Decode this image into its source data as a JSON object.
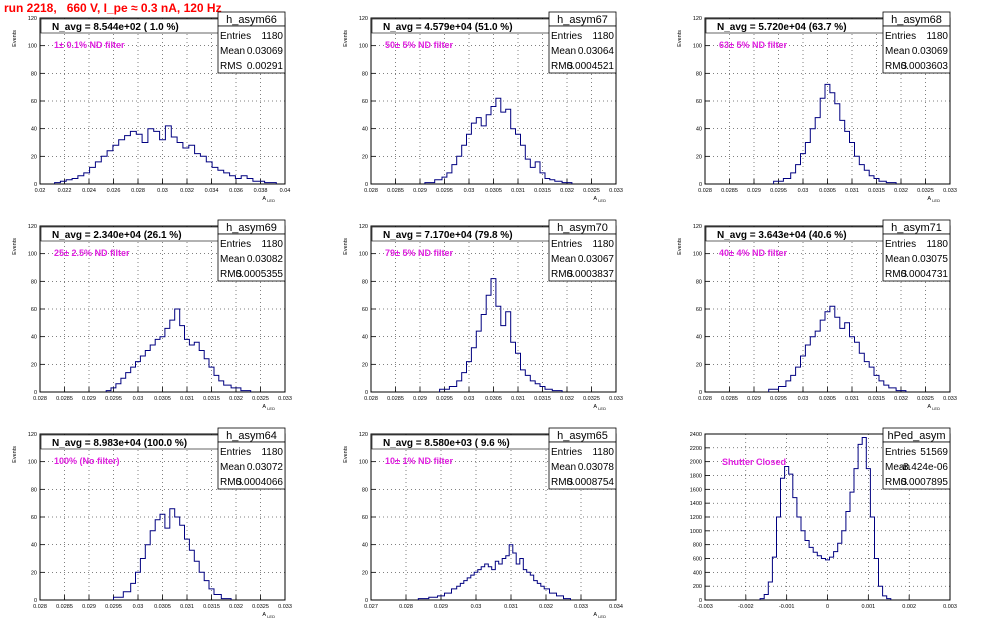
{
  "page": {
    "title": "run 2218,   660 V, I_pe ≈ 0.3 nA, 120 Hz"
  },
  "colors": {
    "histogram": "#000080",
    "annotation": "#e020e0",
    "title_text": "#ff0000",
    "axes": "#000000",
    "grid": "#000000"
  },
  "chart_data": [
    {
      "type": "histogram",
      "name": "h_asym66",
      "stats": {
        "entries_label": "Entries",
        "entries": "1180",
        "mean_label": "Mean",
        "mean": "0.03069",
        "rms_label": "RMS",
        "rms": "0.00291"
      },
      "annotation": "N_avg = 8.544e+02 ( 1.0 %)",
      "filter_label": "1± 0.1% ND filter",
      "xlabel": "A_LED",
      "ylabel": "Events",
      "xlim": [
        0.02,
        0.041
      ],
      "ylim": [
        0,
        120
      ],
      "xticks": [
        "0.02",
        "0.022",
        "0.024",
        "0.026",
        "0.028",
        "0.03",
        "0.032",
        "0.034",
        "0.036",
        "0.038",
        "0.04"
      ],
      "yticks": [
        "0",
        "20",
        "40",
        "60",
        "80",
        "100",
        "120"
      ],
      "x": [
        0.0215,
        0.022,
        0.0225,
        0.023,
        0.0235,
        0.024,
        0.0245,
        0.025,
        0.0255,
        0.026,
        0.0265,
        0.027,
        0.0275,
        0.028,
        0.0285,
        0.029,
        0.0295,
        0.03,
        0.0305,
        0.031,
        0.0315,
        0.032,
        0.0325,
        0.033,
        0.0335,
        0.034,
        0.0345,
        0.035,
        0.0355,
        0.036,
        0.0365,
        0.037,
        0.0375,
        0.038,
        0.0385,
        0.039,
        0.0395,
        0.04
      ],
      "values": [
        1,
        2,
        3,
        4,
        6,
        8,
        12,
        16,
        20,
        24,
        28,
        32,
        35,
        38,
        36,
        30,
        40,
        38,
        32,
        42,
        34,
        30,
        26,
        28,
        22,
        20,
        16,
        12,
        10,
        8,
        6,
        4,
        6,
        4,
        2,
        2,
        1,
        1
      ]
    },
    {
      "type": "histogram",
      "name": "h_asym67",
      "stats": {
        "entries_label": "Entries",
        "entries": "1180",
        "mean_label": "Mean",
        "mean": "0.03064",
        "rms_label": "RMS",
        "rms": "0.0004521"
      },
      "annotation": "N_avg = 4.579e+04 (51.0 %)",
      "filter_label": "50± 5% ND filter",
      "xlabel": "A_LED",
      "ylabel": "Events",
      "xlim": [
        0.028,
        0.033
      ],
      "ylim": [
        0,
        120
      ],
      "xticks": [
        "0.028",
        "0.0285",
        "0.029",
        "0.0295",
        "0.03",
        "0.0305",
        "0.031",
        "0.0315",
        "0.032",
        "0.0325",
        "0.033"
      ],
      "yticks": [
        "0",
        "20",
        "40",
        "60",
        "80",
        "100",
        "120"
      ],
      "x": [
        0.0292,
        0.0294,
        0.0295,
        0.0296,
        0.0297,
        0.0298,
        0.0299,
        0.03,
        0.0301,
        0.0302,
        0.0303,
        0.0304,
        0.0305,
        0.0306,
        0.0307,
        0.0308,
        0.0309,
        0.031,
        0.0311,
        0.0312,
        0.0313,
        0.0314,
        0.0315,
        0.0316,
        0.0317,
        0.0318,
        0.032
      ],
      "values": [
        1,
        3,
        5,
        8,
        14,
        20,
        28,
        36,
        44,
        48,
        42,
        50,
        56,
        62,
        52,
        54,
        40,
        36,
        28,
        18,
        12,
        16,
        8,
        4,
        3,
        2,
        1
      ]
    },
    {
      "type": "histogram",
      "name": "h_asym68",
      "stats": {
        "entries_label": "Entries",
        "entries": "1180",
        "mean_label": "Mean",
        "mean": "0.03069",
        "rms_label": "RMS",
        "rms": "0.0003603"
      },
      "annotation": "N_avg = 5.720e+04 (63.7 %)",
      "filter_label": "63± 5% ND filter",
      "xlabel": "A_LED",
      "ylabel": "Events",
      "xlim": [
        0.028,
        0.033
      ],
      "ylim": [
        0,
        120
      ],
      "xticks": [
        "0.028",
        "0.0285",
        "0.029",
        "0.0295",
        "0.03",
        "0.0305",
        "0.031",
        "0.0315",
        "0.032",
        "0.0325",
        "0.033"
      ],
      "yticks": [
        "0",
        "20",
        "40",
        "60",
        "80",
        "100",
        "120"
      ],
      "x": [
        0.0295,
        0.0297,
        0.0298,
        0.0299,
        0.03,
        0.0301,
        0.0302,
        0.0303,
        0.0304,
        0.0305,
        0.0306,
        0.0307,
        0.0308,
        0.0309,
        0.031,
        0.0311,
        0.0312,
        0.0313,
        0.0314,
        0.0315,
        0.0316,
        0.0318
      ],
      "values": [
        2,
        4,
        8,
        14,
        22,
        30,
        40,
        48,
        62,
        72,
        66,
        58,
        46,
        38,
        30,
        20,
        14,
        10,
        6,
        4,
        2,
        1
      ]
    },
    {
      "type": "histogram",
      "name": "h_asym69",
      "stats": {
        "entries_label": "Entries",
        "entries": "1180",
        "mean_label": "Mean",
        "mean": "0.03082",
        "rms_label": "RMS",
        "rms": "0.0005355"
      },
      "annotation": "N_avg = 2.340e+04 (26.1 %)",
      "filter_label": "25± 2.5% ND filter",
      "xlabel": "A_LED",
      "ylabel": "Events",
      "xlim": [
        0.028,
        0.033
      ],
      "ylim": [
        0,
        120
      ],
      "xticks": [
        "0.028",
        "0.0285",
        "0.029",
        "0.0295",
        "0.03",
        "0.0305",
        "0.031",
        "0.0315",
        "0.032",
        "0.0325",
        "0.033"
      ],
      "yticks": [
        "0",
        "20",
        "40",
        "60",
        "80",
        "100",
        "120"
      ],
      "x": [
        0.0294,
        0.0295,
        0.0296,
        0.0297,
        0.0298,
        0.0299,
        0.03,
        0.0301,
        0.0302,
        0.0303,
        0.0304,
        0.0305,
        0.0306,
        0.0307,
        0.0308,
        0.0309,
        0.031,
        0.0311,
        0.0312,
        0.0313,
        0.0314,
        0.0315,
        0.0316,
        0.0317,
        0.0318,
        0.032,
        0.0322
      ],
      "values": [
        1,
        3,
        6,
        10,
        14,
        18,
        22,
        26,
        30,
        34,
        38,
        40,
        46,
        52,
        60,
        48,
        38,
        34,
        36,
        30,
        24,
        18,
        12,
        8,
        5,
        3,
        1
      ]
    },
    {
      "type": "histogram",
      "name": "h_asym70",
      "stats": {
        "entries_label": "Entries",
        "entries": "1180",
        "mean_label": "Mean",
        "mean": "0.03067",
        "rms_label": "RMS",
        "rms": "0.0003837"
      },
      "annotation": "N_avg = 7.170e+04 (79.8 %)",
      "filter_label": "79± 5% ND filter",
      "xlabel": "A_LED",
      "ylabel": "Events",
      "xlim": [
        0.028,
        0.033
      ],
      "ylim": [
        0,
        120
      ],
      "xticks": [
        "0.028",
        "0.0285",
        "0.029",
        "0.0295",
        "0.03",
        "0.0305",
        "0.031",
        "0.0315",
        "0.032",
        "0.0325",
        "0.033"
      ],
      "yticks": [
        "0",
        "20",
        "40",
        "60",
        "80",
        "100",
        "120"
      ],
      "x": [
        0.0295,
        0.0297,
        0.0298,
        0.0299,
        0.03,
        0.0301,
        0.0302,
        0.0303,
        0.0304,
        0.0305,
        0.0306,
        0.0307,
        0.0308,
        0.0309,
        0.031,
        0.0311,
        0.0312,
        0.0313,
        0.0314,
        0.0315,
        0.0316,
        0.0318
      ],
      "values": [
        2,
        4,
        8,
        14,
        22,
        32,
        44,
        56,
        70,
        82,
        62,
        48,
        58,
        36,
        28,
        16,
        12,
        8,
        6,
        4,
        2,
        1
      ]
    },
    {
      "type": "histogram",
      "name": "h_asym71",
      "stats": {
        "entries_label": "Entries",
        "entries": "1180",
        "mean_label": "Mean",
        "mean": "0.03075",
        "rms_label": "RMS",
        "rms": "0.0004731"
      },
      "annotation": "N_avg = 3.643e+04 (40.6 %)",
      "filter_label": "40± 4% ND filter",
      "xlabel": "A_LED",
      "ylabel": "Events",
      "xlim": [
        0.028,
        0.033
      ],
      "ylim": [
        0,
        120
      ],
      "xticks": [
        "0.028",
        "0.0285",
        "0.029",
        "0.0295",
        "0.03",
        "0.0305",
        "0.031",
        "0.0315",
        "0.032",
        "0.0325",
        "0.033"
      ],
      "yticks": [
        "0",
        "20",
        "40",
        "60",
        "80",
        "100",
        "120"
      ],
      "x": [
        0.0294,
        0.0296,
        0.0297,
        0.0298,
        0.0299,
        0.03,
        0.0301,
        0.0302,
        0.0303,
        0.0304,
        0.0305,
        0.0306,
        0.0307,
        0.0308,
        0.0309,
        0.031,
        0.0311,
        0.0312,
        0.0313,
        0.0314,
        0.0315,
        0.0316,
        0.0317,
        0.0318,
        0.032
      ],
      "values": [
        2,
        4,
        8,
        12,
        18,
        26,
        34,
        40,
        44,
        52,
        58,
        62,
        54,
        46,
        50,
        40,
        36,
        28,
        22,
        18,
        12,
        8,
        5,
        3,
        1
      ]
    },
    {
      "type": "histogram",
      "name": "h_asym64",
      "stats": {
        "entries_label": "Entries",
        "entries": "1180",
        "mean_label": "Mean",
        "mean": "0.03072",
        "rms_label": "RMS",
        "rms": "0.0004066"
      },
      "annotation": "N_avg = 8.983e+04 (100.0 %)",
      "filter_label": "100% (No filter)",
      "xlabel": "A_LED",
      "ylabel": "Events",
      "xlim": [
        0.028,
        0.033
      ],
      "ylim": [
        0,
        120
      ],
      "xticks": [
        "0.028",
        "0.0285",
        "0.029",
        "0.0295",
        "0.03",
        "0.0305",
        "0.031",
        "0.0315",
        "0.032",
        "0.0325",
        "0.033"
      ],
      "yticks": [
        "0",
        "20",
        "40",
        "60",
        "80",
        "100",
        "120"
      ],
      "x": [
        0.0296,
        0.0298,
        0.0299,
        0.03,
        0.0301,
        0.0302,
        0.0303,
        0.0304,
        0.0305,
        0.0306,
        0.0307,
        0.0308,
        0.0309,
        0.031,
        0.0311,
        0.0312,
        0.0313,
        0.0314,
        0.0315,
        0.0316,
        0.0318
      ],
      "values": [
        2,
        6,
        12,
        20,
        30,
        40,
        50,
        58,
        62,
        52,
        66,
        60,
        54,
        44,
        36,
        28,
        20,
        14,
        8,
        4,
        1
      ]
    },
    {
      "type": "histogram",
      "name": "h_asym65",
      "stats": {
        "entries_label": "Entries",
        "entries": "1180",
        "mean_label": "Mean",
        "mean": "0.03078",
        "rms_label": "RMS",
        "rms": "0.0008754"
      },
      "annotation": "N_avg = 8.580e+03 ( 9.6 %)",
      "filter_label": "10± 1% ND filter",
      "xlabel": "A_LED",
      "ylabel": "Events",
      "xlim": [
        0.027,
        0.034
      ],
      "ylim": [
        0,
        120
      ],
      "xticks": [
        "0.027",
        "0.028",
        "0.029",
        "0.03",
        "0.031",
        "0.032",
        "0.033",
        "0.034"
      ],
      "yticks": [
        "0",
        "20",
        "40",
        "60",
        "80",
        "100",
        "120"
      ],
      "x": [
        0.0285,
        0.0288,
        0.029,
        0.0292,
        0.0294,
        0.0295,
        0.0296,
        0.0297,
        0.0298,
        0.0299,
        0.03,
        0.0301,
        0.0302,
        0.0303,
        0.0304,
        0.0305,
        0.0306,
        0.0307,
        0.0308,
        0.0309,
        0.031,
        0.0311,
        0.0312,
        0.0313,
        0.0314,
        0.0315,
        0.0316,
        0.0317,
        0.0318,
        0.0319,
        0.032,
        0.0322,
        0.0324,
        0.0326
      ],
      "values": [
        1,
        2,
        3,
        5,
        8,
        10,
        12,
        14,
        16,
        18,
        20,
        22,
        24,
        26,
        24,
        22,
        28,
        26,
        30,
        32,
        40,
        34,
        26,
        30,
        22,
        20,
        18,
        14,
        12,
        10,
        8,
        5,
        3,
        1
      ]
    },
    {
      "type": "histogram",
      "name": "hPed_asym",
      "stats": {
        "entries_label": "Entries",
        "entries": "51569",
        "mean_label": "Mean",
        "mean": "-8.424e-06",
        "rms_label": "RMS",
        "rms": "0.0007895"
      },
      "annotation": "",
      "filter_label": "Shutter Closed",
      "xlabel": "",
      "ylabel": "",
      "xlim": [
        -0.003,
        0.003
      ],
      "ylim": [
        0,
        2400
      ],
      "xticks": [
        "-0.003",
        "-0.002",
        "-0.001",
        "0",
        "0.001",
        "0.002",
        "0.003"
      ],
      "yticks": [
        "0",
        "200",
        "400",
        "600",
        "800",
        "1000",
        "1200",
        "1400",
        "1600",
        "1800",
        "2000",
        "2200",
        "2400"
      ],
      "x": [
        -0.0016,
        -0.0015,
        -0.0014,
        -0.0013,
        -0.0012,
        -0.0011,
        -0.001,
        -0.0009,
        -0.0008,
        -0.0007,
        -0.0006,
        -0.0005,
        -0.0004,
        -0.0003,
        -0.0002,
        -0.0001,
        0.0,
        0.0001,
        0.0002,
        0.0003,
        0.0004,
        0.0005,
        0.0006,
        0.0007,
        0.0008,
        0.0009,
        0.001,
        0.0011,
        0.0012,
        0.0013,
        0.0014,
        0.0015
      ],
      "values": [
        20,
        80,
        260,
        620,
        1200,
        1760,
        1930,
        1820,
        1480,
        1200,
        1000,
        860,
        760,
        690,
        640,
        600,
        580,
        620,
        700,
        820,
        1000,
        1280,
        1560,
        1900,
        2250,
        2350,
        1900,
        1200,
        600,
        200,
        60,
        20
      ]
    }
  ]
}
